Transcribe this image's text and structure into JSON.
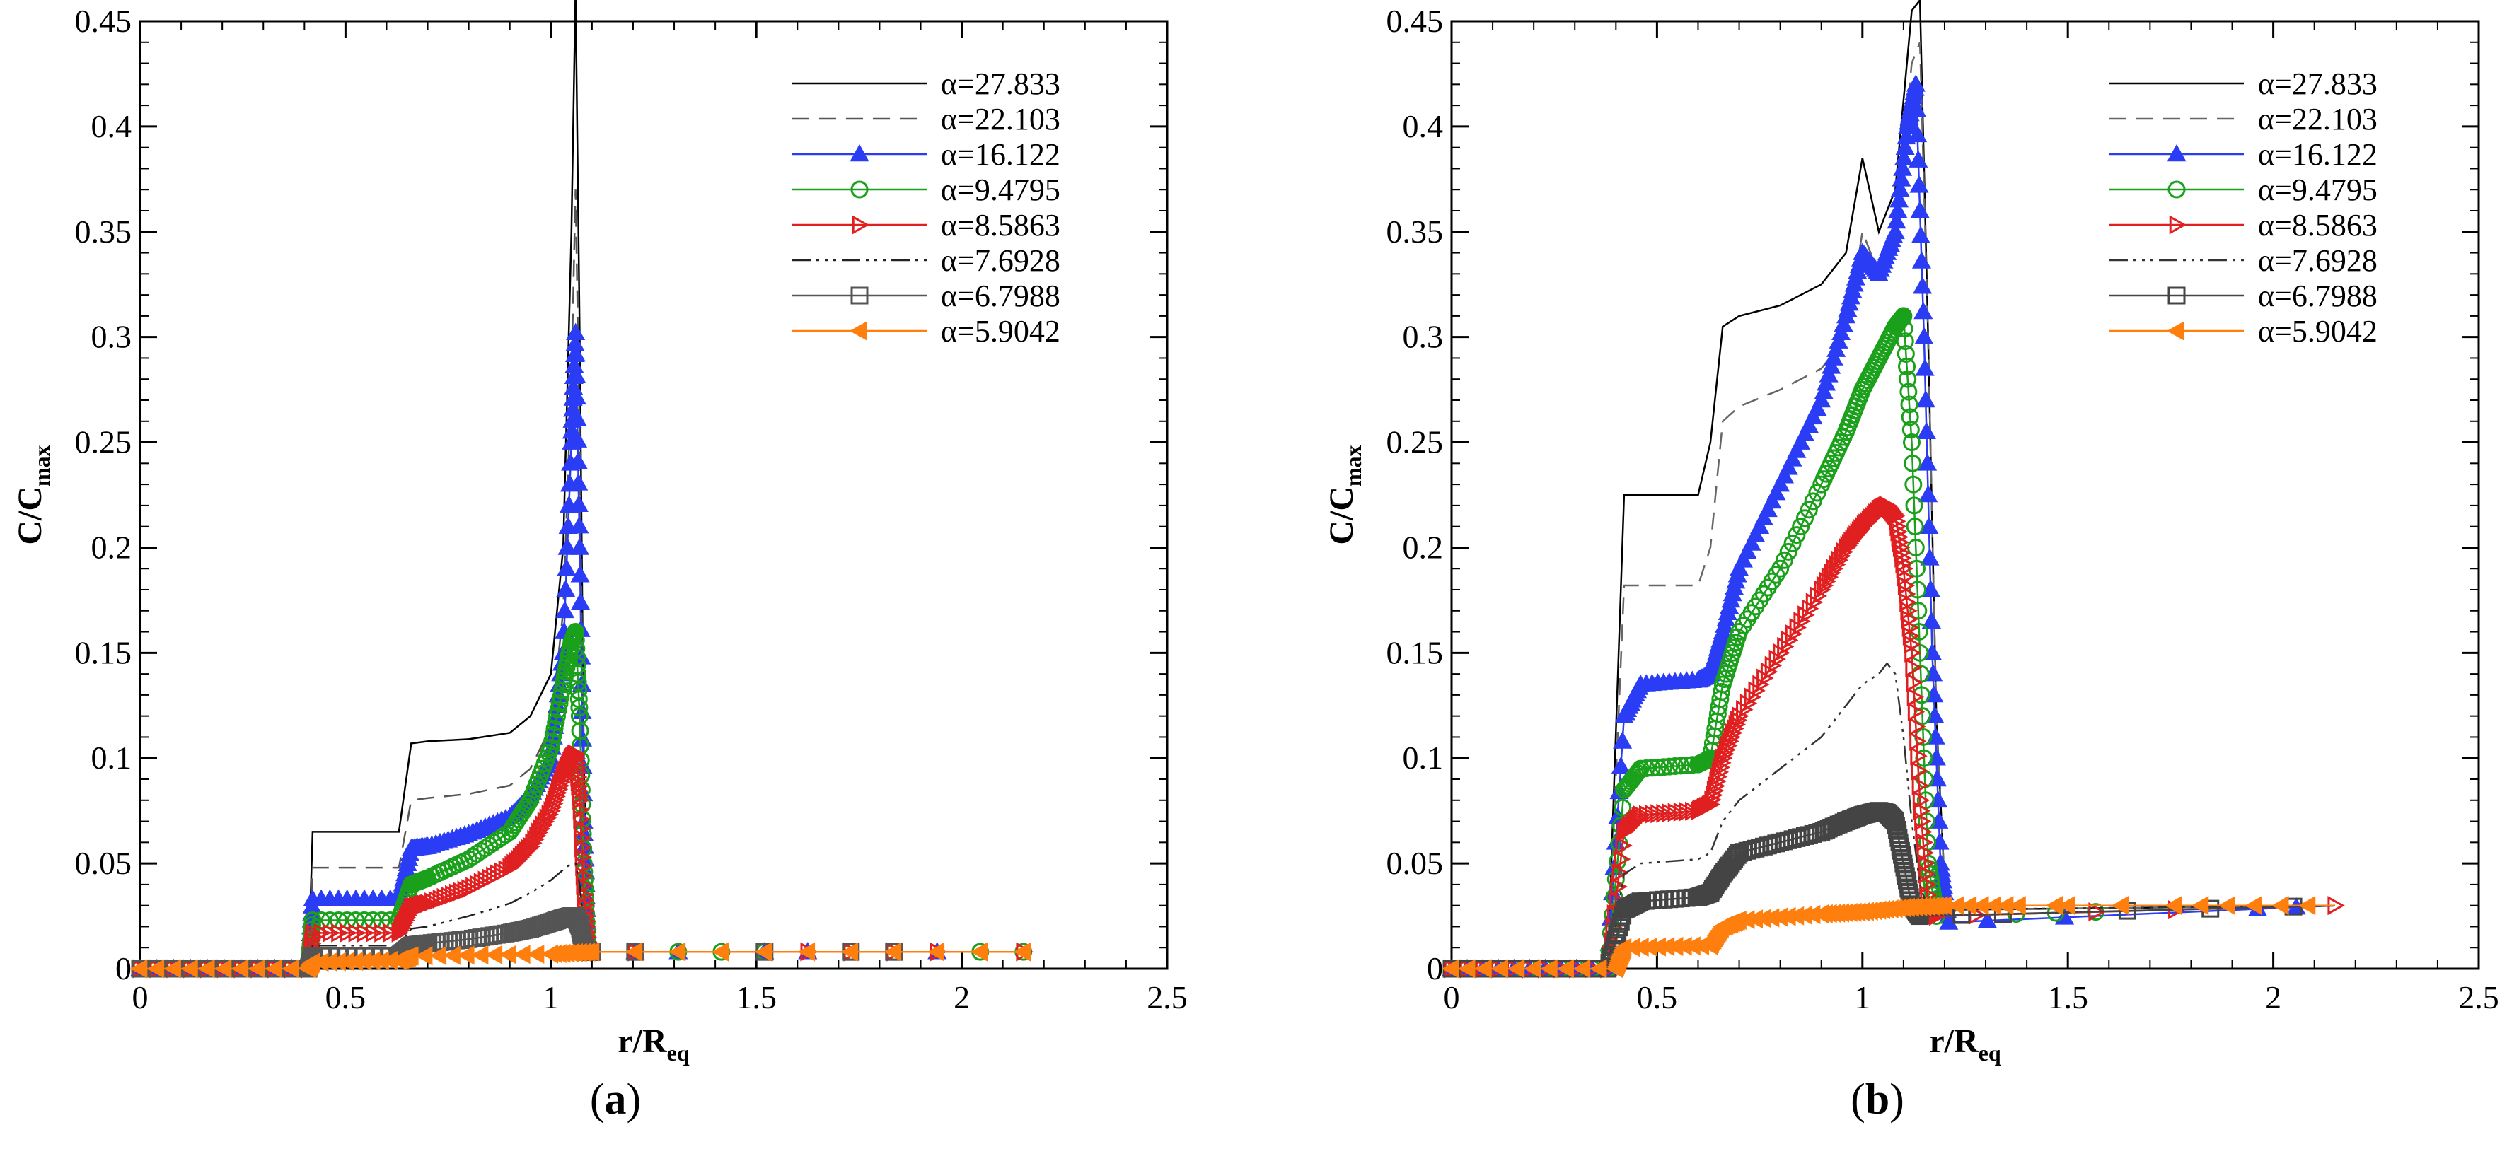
{
  "chart_data": [
    {
      "type": "line",
      "panel_label": "a",
      "xlabel_main": "r/R",
      "xlabel_sub": "eq",
      "ylabel_main": "C/C",
      "ylabel_sub": "max",
      "xlim": [
        0,
        2.5
      ],
      "ylim": [
        0,
        0.45
      ],
      "xticks": [
        0,
        0.5,
        1,
        1.5,
        2,
        2.5
      ],
      "xtick_labels": [
        "0",
        "0.5",
        "1",
        "1.5",
        "2",
        "2.5"
      ],
      "yticks": [
        0,
        0.05,
        0.1,
        0.15,
        0.2,
        0.25,
        0.3,
        0.35,
        0.4,
        0.45
      ],
      "ytick_labels": [
        "0",
        "0.05",
        "0.1",
        "0.15",
        "0.2",
        "0.25",
        "0.3",
        "0.35",
        "0.4",
        "0.45"
      ],
      "legend_position": "top-right",
      "series": [
        {
          "name": "α=27.833",
          "color": "#000000",
          "dash": "",
          "marker": "none",
          "x": [
            0,
            0.41,
            0.42,
            0.63,
            0.66,
            0.7,
            0.8,
            0.9,
            0.95,
            1.0,
            1.03,
            1.05,
            1.06,
            1.07,
            1.08,
            1.09,
            1.1,
            2.15
          ],
          "y": [
            0,
            0,
            0.065,
            0.065,
            0.107,
            0.108,
            0.109,
            0.112,
            0.12,
            0.14,
            0.2,
            0.35,
            0.465,
            0.3,
            0.1,
            0.01,
            0.008,
            0.008
          ]
        },
        {
          "name": "α=22.103",
          "color": "#555555",
          "dash": "24 14",
          "marker": "none",
          "x": [
            0,
            0.41,
            0.42,
            0.63,
            0.66,
            0.7,
            0.8,
            0.9,
            0.95,
            1.0,
            1.03,
            1.05,
            1.06,
            1.07,
            1.08,
            1.09,
            1.1,
            2.15
          ],
          "y": [
            0,
            0,
            0.048,
            0.048,
            0.08,
            0.081,
            0.083,
            0.087,
            0.095,
            0.115,
            0.17,
            0.28,
            0.37,
            0.25,
            0.08,
            0.01,
            0.008,
            0.008
          ]
        },
        {
          "name": "α=16.122",
          "color": "#2b3cf5",
          "dash": "",
          "marker": "triangle-up",
          "x": [
            0,
            0.41,
            0.42,
            0.63,
            0.66,
            0.7,
            0.8,
            0.9,
            0.95,
            1.0,
            1.03,
            1.05,
            1.06,
            1.07,
            1.08,
            1.09,
            1.1,
            2.15
          ],
          "y": [
            0,
            0,
            0.033,
            0.033,
            0.057,
            0.058,
            0.064,
            0.072,
            0.082,
            0.1,
            0.15,
            0.25,
            0.302,
            0.2,
            0.07,
            0.01,
            0.008,
            0.008
          ]
        },
        {
          "name": "α=9.4795",
          "color": "#1aa01a",
          "dash": "",
          "marker": "circle",
          "x": [
            0,
            0.41,
            0.42,
            0.63,
            0.66,
            0.7,
            0.8,
            0.9,
            0.95,
            1.0,
            1.03,
            1.05,
            1.06,
            1.07,
            1.08,
            1.09,
            1.1,
            2.15
          ],
          "y": [
            0,
            0,
            0.023,
            0.023,
            0.04,
            0.043,
            0.052,
            0.065,
            0.08,
            0.105,
            0.135,
            0.155,
            0.16,
            0.12,
            0.05,
            0.01,
            0.008,
            0.008
          ]
        },
        {
          "name": "α=8.5863",
          "color": "#e02020",
          "dash": "",
          "marker": "triangle-right",
          "x": [
            0,
            0.41,
            0.42,
            0.63,
            0.66,
            0.7,
            0.8,
            0.9,
            0.95,
            1.0,
            1.03,
            1.05,
            1.06,
            1.07,
            1.08,
            1.09,
            1.1,
            2.15
          ],
          "y": [
            0,
            0,
            0.017,
            0.017,
            0.029,
            0.031,
            0.038,
            0.048,
            0.058,
            0.075,
            0.092,
            0.1,
            0.102,
            0.08,
            0.035,
            0.01,
            0.008,
            0.008
          ]
        },
        {
          "name": "α=7.6928",
          "color": "#222222",
          "dash": "26 8 4 8 4 8 4 8",
          "marker": "none",
          "x": [
            0,
            0.41,
            0.42,
            0.63,
            0.66,
            0.7,
            0.8,
            0.9,
            0.95,
            1.0,
            1.03,
            1.05,
            1.06,
            1.07,
            1.08,
            1.09,
            1.1,
            2.15
          ],
          "y": [
            0,
            0,
            0.011,
            0.011,
            0.019,
            0.02,
            0.025,
            0.031,
            0.036,
            0.042,
            0.047,
            0.05,
            0.05,
            0.04,
            0.02,
            0.009,
            0.008,
            0.008
          ]
        },
        {
          "name": "α=6.7988",
          "color": "#555555",
          "dash": "",
          "marker": "square",
          "x": [
            0,
            0.41,
            0.42,
            0.63,
            0.66,
            0.7,
            0.8,
            0.9,
            0.95,
            1.0,
            1.03,
            1.05,
            1.06,
            1.07,
            1.08,
            1.09,
            1.1,
            2.15
          ],
          "y": [
            0,
            0,
            0.006,
            0.006,
            0.011,
            0.012,
            0.014,
            0.017,
            0.019,
            0.022,
            0.024,
            0.025,
            0.025,
            0.02,
            0.01,
            0.008,
            0.008,
            0.008
          ]
        },
        {
          "name": "α=5.9042",
          "color": "#ff7f0e",
          "dash": "",
          "marker": "triangle-left",
          "x": [
            0,
            0.41,
            0.42,
            0.63,
            0.66,
            1.0,
            1.1,
            2.15
          ],
          "y": [
            0,
            0,
            0.003,
            0.004,
            0.006,
            0.007,
            0.008,
            0.008
          ]
        }
      ]
    },
    {
      "type": "line",
      "panel_label": "b",
      "xlabel_main": "r/R",
      "xlabel_sub": "eq",
      "ylabel_main": "C/C",
      "ylabel_sub": "max",
      "xlim": [
        0,
        2.5
      ],
      "ylim": [
        0,
        0.45
      ],
      "xticks": [
        0,
        0.5,
        1,
        1.5,
        2,
        2.5
      ],
      "xtick_labels": [
        "0",
        "0.5",
        "1",
        "1.5",
        "2",
        "2.5"
      ],
      "yticks": [
        0,
        0.05,
        0.1,
        0.15,
        0.2,
        0.25,
        0.3,
        0.35,
        0.4,
        0.45
      ],
      "ytick_labels": [
        "0",
        "0.05",
        "0.1",
        "0.15",
        "0.2",
        "0.25",
        "0.3",
        "0.35",
        "0.4",
        "0.45"
      ],
      "legend_position": "top-right",
      "series": [
        {
          "name": "α=27.833",
          "color": "#000000",
          "dash": "",
          "marker": "none",
          "x": [
            0,
            0.38,
            0.42,
            0.6,
            0.63,
            0.66,
            0.7,
            0.8,
            0.9,
            0.96,
            1.0,
            1.04,
            1.08,
            1.12,
            1.14,
            1.16,
            1.18,
            1.2,
            1.22,
            2.15
          ],
          "y": [
            0,
            0,
            0.225,
            0.225,
            0.25,
            0.305,
            0.31,
            0.315,
            0.325,
            0.34,
            0.385,
            0.35,
            0.37,
            0.455,
            0.46,
            0.3,
            0.12,
            0.04,
            0.028,
            0.03
          ]
        },
        {
          "name": "α=22.103",
          "color": "#666666",
          "dash": "24 14",
          "marker": "none",
          "x": [
            0,
            0.38,
            0.42,
            0.6,
            0.63,
            0.66,
            0.7,
            0.8,
            0.9,
            0.96,
            1.0,
            1.04,
            1.08,
            1.12,
            1.14,
            1.16,
            1.18,
            1.2,
            1.22,
            2.15
          ],
          "y": [
            0,
            0,
            0.182,
            0.182,
            0.2,
            0.26,
            0.267,
            0.275,
            0.285,
            0.3,
            0.35,
            0.33,
            0.35,
            0.43,
            0.44,
            0.3,
            0.12,
            0.04,
            0.028,
            0.03
          ]
        },
        {
          "name": "α=16.122",
          "color": "#2b3cf5",
          "dash": "",
          "marker": "triangle-up",
          "x": [
            0,
            0.38,
            0.42,
            0.46,
            0.6,
            0.63,
            0.66,
            0.7,
            0.8,
            0.9,
            0.96,
            1.0,
            1.04,
            1.08,
            1.11,
            1.13,
            1.15,
            1.17,
            1.19,
            1.21,
            2.15
          ],
          "y": [
            0,
            0,
            0.12,
            0.135,
            0.137,
            0.14,
            0.16,
            0.19,
            0.23,
            0.27,
            0.31,
            0.34,
            0.33,
            0.35,
            0.4,
            0.42,
            0.3,
            0.15,
            0.05,
            0.022,
            0.03
          ]
        },
        {
          "name": "α=9.4795",
          "color": "#1aa01a",
          "dash": "",
          "marker": "circle",
          "x": [
            0,
            0.38,
            0.42,
            0.46,
            0.6,
            0.63,
            0.66,
            0.7,
            0.8,
            0.9,
            0.96,
            1.0,
            1.04,
            1.08,
            1.1,
            1.12,
            1.14,
            1.16,
            1.18,
            2.15
          ],
          "y": [
            0,
            0,
            0.085,
            0.095,
            0.097,
            0.1,
            0.135,
            0.16,
            0.19,
            0.23,
            0.255,
            0.275,
            0.29,
            0.305,
            0.31,
            0.25,
            0.15,
            0.05,
            0.025,
            0.03
          ]
        },
        {
          "name": "α=8.5863",
          "color": "#e02020",
          "dash": "",
          "marker": "triangle-right",
          "x": [
            0,
            0.38,
            0.42,
            0.46,
            0.6,
            0.63,
            0.66,
            0.7,
            0.8,
            0.9,
            0.96,
            1.0,
            1.04,
            1.06,
            1.08,
            1.1,
            1.12,
            1.14,
            1.16,
            1.18,
            2.15
          ],
          "y": [
            0,
            0,
            0.065,
            0.073,
            0.075,
            0.078,
            0.1,
            0.12,
            0.15,
            0.18,
            0.2,
            0.21,
            0.218,
            0.22,
            0.215,
            0.19,
            0.15,
            0.08,
            0.03,
            0.025,
            0.03
          ]
        },
        {
          "name": "α=7.6928",
          "color": "#333333",
          "dash": "26 8 4 8 4 8 4 8",
          "marker": "none",
          "x": [
            0,
            0.38,
            0.42,
            0.46,
            0.6,
            0.63,
            0.66,
            0.7,
            0.8,
            0.9,
            0.96,
            1.0,
            1.04,
            1.06,
            1.08,
            1.1,
            1.12,
            1.14,
            1.16,
            2.15
          ],
          "y": [
            0,
            0,
            0.045,
            0.05,
            0.052,
            0.055,
            0.07,
            0.08,
            0.095,
            0.11,
            0.125,
            0.135,
            0.14,
            0.145,
            0.14,
            0.11,
            0.07,
            0.04,
            0.028,
            0.03
          ]
        },
        {
          "name": "α=6.7988",
          "color": "#444444",
          "dash": "",
          "marker": "square",
          "x": [
            0,
            0.38,
            0.42,
            0.46,
            0.6,
            0.63,
            0.66,
            0.7,
            0.8,
            0.9,
            0.96,
            1.0,
            1.04,
            1.06,
            1.08,
            1.1,
            1.12,
            1.14,
            2.15
          ],
          "y": [
            0,
            0,
            0.028,
            0.032,
            0.034,
            0.036,
            0.045,
            0.055,
            0.06,
            0.065,
            0.07,
            0.073,
            0.075,
            0.074,
            0.07,
            0.05,
            0.03,
            0.025,
            0.03
          ]
        },
        {
          "name": "α=5.9042",
          "color": "#ff7f0e",
          "dash": "",
          "marker": "triangle-left",
          "x": [
            0,
            0.4,
            0.42,
            0.63,
            0.66,
            0.7,
            0.9,
            1.0,
            1.1,
            1.2,
            1.5,
            2.15
          ],
          "y": [
            0,
            0,
            0.01,
            0.011,
            0.02,
            0.023,
            0.026,
            0.027,
            0.029,
            0.03,
            0.03,
            0.03
          ]
        }
      ]
    }
  ]
}
